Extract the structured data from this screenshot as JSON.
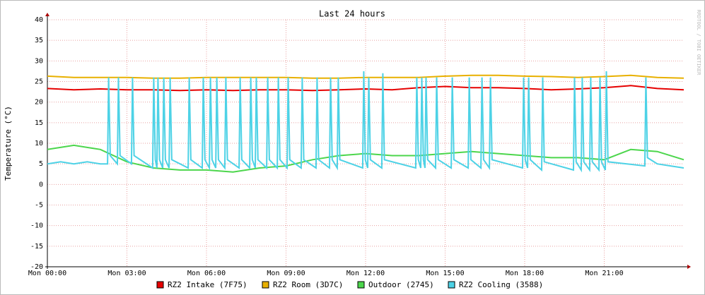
{
  "chart_data": {
    "type": "line",
    "title": "Last 24 hours",
    "y_label": "Temperature (°C)",
    "side_text": "RRDTOOL / TOBI OETIKER",
    "xlim": [
      0,
      24
    ],
    "ylim": [
      -20,
      40
    ],
    "grid": true,
    "xticks": [
      {
        "value": 0,
        "label": "Mon 00:00"
      },
      {
        "value": 3,
        "label": "Mon 03:00"
      },
      {
        "value": 6,
        "label": "Mon 06:00"
      },
      {
        "value": 9,
        "label": "Mon 09:00"
      },
      {
        "value": 12,
        "label": "Mon 12:00"
      },
      {
        "value": 15,
        "label": "Mon 15:00"
      },
      {
        "value": 18,
        "label": "Mon 18:00"
      },
      {
        "value": 21,
        "label": "Mon 21:00"
      }
    ],
    "yticks": [
      -20,
      -15,
      -10,
      -5,
      0,
      5,
      10,
      15,
      20,
      25,
      30,
      35,
      40
    ],
    "series": [
      {
        "name": "RZ2 Intake (7F75)",
        "color": "#e60000",
        "x": [
          0,
          1,
          2,
          3,
          4,
          5,
          6,
          7,
          8,
          9,
          10,
          11,
          12,
          13,
          14,
          15,
          16,
          17,
          18,
          19,
          20,
          21,
          22,
          23,
          24
        ],
        "values": [
          23.3,
          23,
          23.2,
          23,
          23,
          22.8,
          23,
          22.8,
          23,
          23,
          22.8,
          23,
          23.2,
          23,
          23.5,
          23.8,
          23.5,
          23.5,
          23.3,
          23,
          23.2,
          23.5,
          24,
          23.3,
          23
        ]
      },
      {
        "name": "RZ2 Room (3D7C)",
        "color": "#e8b000",
        "x": [
          0,
          1,
          2,
          3,
          4,
          5,
          6,
          7,
          8,
          9,
          10,
          11,
          12,
          13,
          14,
          15,
          16,
          17,
          18,
          19,
          20,
          21,
          22,
          23,
          24
        ],
        "values": [
          26.3,
          26,
          26,
          26,
          25.8,
          25.8,
          26,
          26,
          26,
          26,
          25.8,
          25.8,
          26,
          26,
          26,
          26.3,
          26.5,
          26.5,
          26.3,
          26.2,
          26,
          26.2,
          26.5,
          26,
          25.8
        ]
      },
      {
        "name": "Outdoor (2745)",
        "color": "#4cd64c",
        "x": [
          0,
          1,
          2,
          3,
          4,
          5,
          6,
          7,
          8,
          9,
          10,
          11,
          12,
          13,
          14,
          15,
          16,
          17,
          18,
          19,
          20,
          21,
          22,
          23,
          24
        ],
        "values": [
          8.5,
          9.5,
          8.5,
          5.5,
          4,
          3.5,
          3.5,
          3,
          4,
          4.5,
          6,
          7,
          7.5,
          7,
          7,
          7.5,
          8,
          7.5,
          7,
          6.5,
          6.5,
          6,
          8.5,
          8,
          6
        ]
      },
      {
        "name": "RZ2 Cooling (3588)",
        "color": "#4dd2e6",
        "x": [
          0,
          0.5,
          1,
          1.5,
          2,
          2.27,
          2.31,
          2.37,
          2.64,
          2.68,
          2.74,
          3.17,
          3.21,
          3.27,
          3.97,
          4.01,
          4.07,
          4.13,
          4.17,
          4.23,
          4.35,
          4.39,
          4.45,
          4.59,
          4.63,
          4.69,
          5.31,
          5.35,
          5.41,
          5.84,
          5.88,
          5.94,
          6.11,
          6.15,
          6.21,
          6.35,
          6.39,
          6.45,
          6.69,
          6.73,
          6.79,
          7.23,
          7.27,
          7.33,
          7.63,
          7.67,
          7.73,
          7.84,
          7.88,
          7.94,
          8.27,
          8.31,
          8.37,
          8.67,
          8.71,
          8.77,
          9.04,
          9.08,
          9.14,
          9.57,
          9.61,
          9.67,
          10.13,
          10.17,
          10.23,
          10.64,
          10.68,
          10.74,
          10.93,
          10.97,
          11.03,
          11.89,
          11.93,
          11.99,
          12.08,
          12.12,
          12.18,
          12.61,
          12.65,
          12.71,
          13.89,
          13.93,
          13.99,
          14.08,
          14.12,
          14.18,
          14.24,
          14.28,
          14.34,
          14.64,
          14.68,
          14.74,
          15.23,
          15.27,
          15.33,
          15.87,
          15.91,
          15.97,
          16.35,
          16.39,
          16.45,
          16.67,
          16.71,
          16.77,
          17.92,
          17.96,
          18.02,
          18.11,
          18.15,
          18.21,
          18.64,
          18.68,
          18.74,
          19.84,
          19.88,
          19.94,
          20.13,
          20.17,
          20.23,
          20.45,
          20.49,
          20.55,
          20.8,
          20.84,
          20.9,
          21.04,
          21.08,
          21.14,
          22.53,
          22.57,
          22.63,
          23,
          23.5,
          24
        ],
        "values": [
          5,
          5.5,
          5,
          5.5,
          5,
          5,
          26,
          7,
          5,
          26,
          7,
          5,
          26,
          7,
          4,
          26,
          6,
          4,
          26,
          6,
          4,
          26,
          6,
          4,
          26,
          6,
          4,
          26,
          6,
          4,
          26,
          6,
          4,
          26,
          6,
          4,
          26,
          6,
          4,
          26,
          6,
          4,
          26,
          6,
          4,
          26,
          6,
          4,
          26,
          6,
          4,
          26,
          6,
          4,
          26,
          6,
          4,
          26,
          6,
          4,
          26,
          6,
          4,
          26,
          6,
          4,
          26,
          6,
          4,
          26,
          6,
          4,
          27.5,
          6,
          4,
          26,
          6,
          4,
          27,
          6,
          4,
          26,
          6,
          4,
          26,
          6,
          4,
          26,
          6,
          4,
          26,
          6,
          4,
          26,
          6,
          4,
          26,
          6,
          4,
          26,
          6,
          4,
          26,
          6,
          4,
          26,
          6,
          4,
          26,
          6,
          3.5,
          26,
          5.5,
          3.5,
          26,
          5.5,
          3.5,
          26,
          5.5,
          3.5,
          26,
          5.5,
          3.5,
          26,
          5.5,
          3.5,
          27.5,
          5.5,
          4.5,
          26,
          6.5,
          5,
          4.5,
          4
        ]
      }
    ]
  }
}
